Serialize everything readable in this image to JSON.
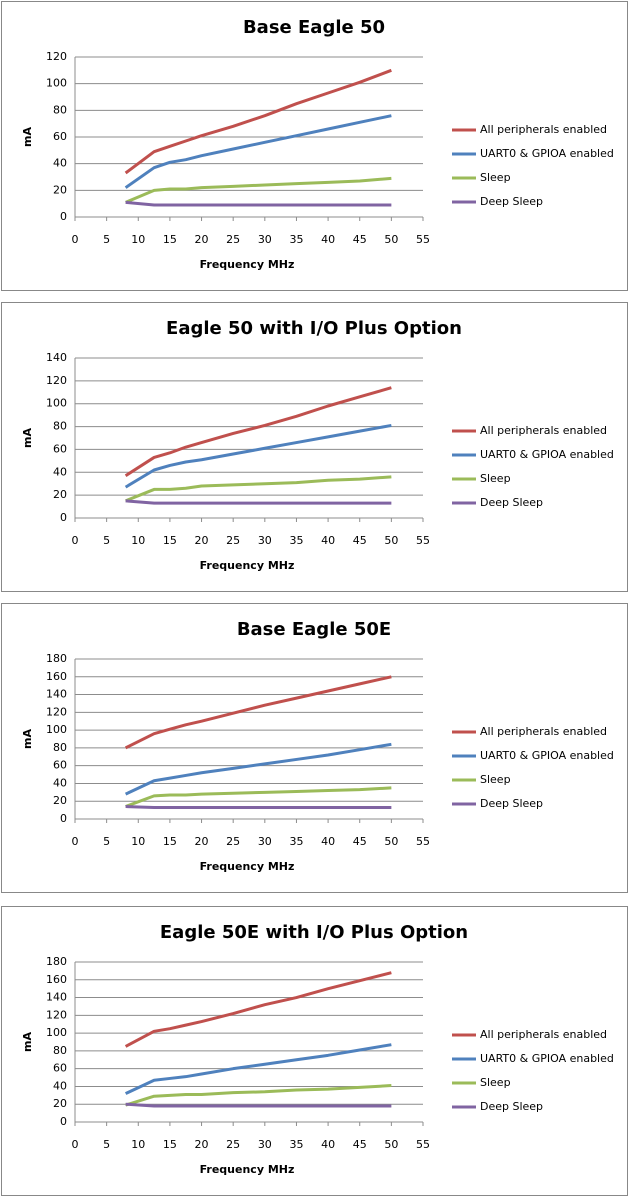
{
  "chart_data": [
    {
      "type": "line",
      "title": "Base Eagle 50",
      "x_label": "Frequency MHz",
      "y_label": "mA",
      "x": [
        8,
        12.5,
        15,
        17.5,
        20,
        25,
        30,
        35,
        40,
        45,
        50
      ],
      "xlim": [
        0,
        55
      ],
      "xticks": [
        0,
        5,
        10,
        15,
        20,
        25,
        30,
        35,
        40,
        45,
        50,
        55
      ],
      "ylim": [
        0,
        120
      ],
      "yticks": [
        0,
        20,
        40,
        60,
        80,
        100,
        120
      ],
      "grid": true,
      "legend": "right",
      "series": [
        {
          "name": "All peripherals enabled",
          "color": "#c0504d",
          "values": [
            33,
            49,
            53,
            57,
            61,
            68,
            76,
            85,
            93,
            101,
            110
          ]
        },
        {
          "name": "UART0 & GPIOA enabled",
          "color": "#4f81bd",
          "values": [
            22,
            37,
            41,
            43,
            46,
            51,
            56,
            61,
            66,
            71,
            76
          ]
        },
        {
          "name": "Sleep",
          "color": "#9bbb59",
          "values": [
            11,
            20,
            21,
            21,
            22,
            23,
            24,
            25,
            26,
            27,
            29
          ]
        },
        {
          "name": "Deep Sleep",
          "color": "#8064a2",
          "values": [
            11,
            9,
            9,
            9,
            9,
            9,
            9,
            9,
            9,
            9,
            9
          ]
        }
      ]
    },
    {
      "type": "line",
      "title": "Eagle 50 with I/O Plus Option",
      "x_label": "Frequency MHz",
      "y_label": "mA",
      "x": [
        8,
        12.5,
        15,
        17.5,
        20,
        25,
        30,
        35,
        40,
        45,
        50
      ],
      "xlim": [
        0,
        55
      ],
      "xticks": [
        0,
        5,
        10,
        15,
        20,
        25,
        30,
        35,
        40,
        45,
        50,
        55
      ],
      "ylim": [
        0,
        140
      ],
      "yticks": [
        0,
        20,
        40,
        60,
        80,
        100,
        120,
        140
      ],
      "grid": true,
      "legend": "right",
      "series": [
        {
          "name": "All peripherals enabled",
          "color": "#c0504d",
          "values": [
            37,
            53,
            57,
            62,
            66,
            74,
            81,
            89,
            98,
            106,
            114
          ]
        },
        {
          "name": "UART0 & GPIOA enabled",
          "color": "#4f81bd",
          "values": [
            27,
            42,
            46,
            49,
            51,
            56,
            61,
            66,
            71,
            76,
            81
          ]
        },
        {
          "name": "Sleep",
          "color": "#9bbb59",
          "values": [
            15,
            25,
            25,
            26,
            28,
            29,
            30,
            31,
            33,
            34,
            36
          ]
        },
        {
          "name": "Deep Sleep",
          "color": "#8064a2",
          "values": [
            15,
            13,
            13,
            13,
            13,
            13,
            13,
            13,
            13,
            13,
            13
          ]
        }
      ]
    },
    {
      "type": "line",
      "title": "Base Eagle 50E",
      "x_label": "Frequency MHz",
      "y_label": "mA",
      "x": [
        8,
        12.5,
        15,
        17.5,
        20,
        25,
        30,
        35,
        40,
        45,
        50
      ],
      "xlim": [
        0,
        55
      ],
      "xticks": [
        0,
        5,
        10,
        15,
        20,
        25,
        30,
        35,
        40,
        45,
        50,
        55
      ],
      "ylim": [
        0,
        180
      ],
      "yticks": [
        0,
        20,
        40,
        60,
        80,
        100,
        120,
        140,
        160,
        180
      ],
      "grid": true,
      "legend": "right",
      "series": [
        {
          "name": "All peripherals enabled",
          "color": "#c0504d",
          "values": [
            80,
            96,
            101,
            106,
            110,
            119,
            128,
            136,
            144,
            152,
            160
          ]
        },
        {
          "name": "UART0 & GPIOA enabled",
          "color": "#4f81bd",
          "values": [
            28,
            43,
            46,
            49,
            52,
            57,
            62,
            67,
            72,
            78,
            84
          ]
        },
        {
          "name": "Sleep",
          "color": "#9bbb59",
          "values": [
            14,
            26,
            27,
            27,
            28,
            29,
            30,
            31,
            32,
            33,
            35
          ]
        },
        {
          "name": "Deep Sleep",
          "color": "#8064a2",
          "values": [
            14,
            13,
            13,
            13,
            13,
            13,
            13,
            13,
            13,
            13,
            13
          ]
        }
      ]
    },
    {
      "type": "line",
      "title": "Eagle 50E with I/O Plus Option",
      "x_label": "Frequency MHz",
      "y_label": "mA",
      "x": [
        8,
        12.5,
        15,
        17.5,
        20,
        25,
        30,
        35,
        40,
        45,
        50
      ],
      "xlim": [
        0,
        55
      ],
      "xticks": [
        0,
        5,
        10,
        15,
        20,
        25,
        30,
        35,
        40,
        45,
        50,
        55
      ],
      "ylim": [
        0,
        180
      ],
      "yticks": [
        0,
        20,
        40,
        60,
        80,
        100,
        120,
        140,
        160,
        180
      ],
      "grid": true,
      "legend": "right",
      "series": [
        {
          "name": "All peripherals enabled",
          "color": "#c0504d",
          "values": [
            85,
            102,
            105,
            109,
            113,
            122,
            132,
            140,
            150,
            159,
            168
          ]
        },
        {
          "name": "UART0 & GPIOA enabled",
          "color": "#4f81bd",
          "values": [
            32,
            47,
            49,
            51,
            54,
            60,
            65,
            70,
            75,
            81,
            87
          ]
        },
        {
          "name": "Sleep",
          "color": "#9bbb59",
          "values": [
            19,
            29,
            30,
            31,
            31,
            33,
            34,
            36,
            37,
            39,
            41
          ]
        },
        {
          "name": "Deep Sleep",
          "color": "#8064a2",
          "values": [
            20,
            18,
            18,
            18,
            18,
            18,
            18,
            18,
            18,
            18,
            18
          ]
        }
      ]
    }
  ]
}
